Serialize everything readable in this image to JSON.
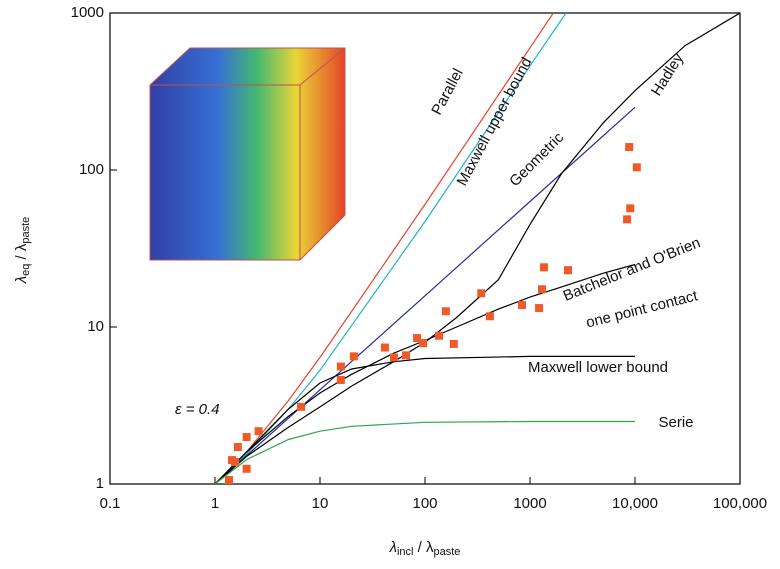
{
  "chart_data": {
    "type": "line",
    "x_label": [
      "λ",
      "incl",
      " / λ",
      "paste"
    ],
    "y_label": [
      "λ",
      "eq",
      " / λ",
      "paste"
    ],
    "xscale": "log",
    "yscale": "log",
    "xlim": [
      0.1,
      100000
    ],
    "ylim": [
      1,
      1000
    ],
    "xticks": [
      0.1,
      1,
      10,
      100,
      1000,
      {
        "value": 10000,
        "label": "10,000"
      },
      {
        "value": 100000,
        "label": "100,000"
      }
    ],
    "yticks": [
      1,
      10,
      100,
      1000
    ],
    "annotation": "ε = 0.4",
    "series": [
      {
        "name": "Parallel",
        "color": "#e8442a",
        "x": [
          1,
          2,
          5,
          10,
          100,
          1000,
          1667
        ],
        "values": [
          1,
          1.6,
          3.4,
          6.4,
          60.4,
          600.4,
          1000
        ]
      },
      {
        "name": "Maxwell upper bound",
        "color": "#1fb5c0",
        "x": [
          1,
          2,
          5,
          10,
          100,
          1000,
          2200
        ],
        "values": [
          1,
          1.55,
          3.0,
          5.3,
          47,
          460,
          1000
        ]
      },
      {
        "name": "Geometric",
        "color": "#2a2a9a",
        "x": [
          1,
          10,
          100,
          1000,
          10000
        ],
        "values": [
          1,
          3.98,
          15.8,
          63,
          251
        ]
      },
      {
        "name": "Hadley",
        "color": "#000000",
        "x": [
          1,
          2,
          5,
          10,
          20,
          50,
          100,
          200,
          500,
          1000,
          2000,
          5000,
          10000,
          30000,
          100000
        ],
        "values": [
          1,
          1.5,
          2.3,
          3.1,
          4.2,
          6,
          8,
          11.5,
          20,
          45,
          95,
          200,
          320,
          620,
          1000
        ]
      },
      {
        "name": "Batchelor and O'Brien",
        "note": "one point contact",
        "color": "#000000",
        "x": [
          1,
          2,
          5,
          10,
          20,
          50,
          100,
          200,
          500,
          1000,
          2000,
          5000,
          10000
        ],
        "values": [
          1,
          1.6,
          2.7,
          3.8,
          5,
          6.8,
          8.2,
          10,
          13,
          15.5,
          18,
          22,
          25
        ]
      },
      {
        "name": "Maxwell lower bound",
        "color": "#000000",
        "x": [
          1,
          2,
          5,
          10,
          20,
          50,
          100,
          1000,
          10000
        ],
        "values": [
          1,
          1.6,
          3,
          4.4,
          5.4,
          6,
          6.3,
          6.5,
          6.5
        ]
      },
      {
        "name": "Serie",
        "color": "#2aa84a",
        "x": [
          1,
          2,
          5,
          10,
          20,
          100,
          1000,
          10000
        ],
        "values": [
          1,
          1.43,
          1.92,
          2.17,
          2.33,
          2.47,
          2.5,
          2.5
        ]
      }
    ],
    "points": {
      "color": "#f05a28",
      "x": [
        1.36,
        1.45,
        1.55,
        1.65,
        2.0,
        2.0,
        2.6,
        6.6,
        15.8,
        15.8,
        21,
        41.5,
        50.6,
        66,
        84,
        96,
        136,
        158,
        188,
        343,
        415,
        840,
        1220,
        1300,
        1360,
        2300,
        8400,
        9000,
        8800,
        10400
      ],
      "values": [
        1.06,
        1.42,
        1.38,
        1.72,
        1.99,
        1.25,
        2.17,
        3.1,
        4.6,
        5.6,
        6.5,
        7.4,
        6.4,
        6.6,
        8.5,
        7.9,
        8.8,
        12.6,
        7.8,
        16.4,
        11.7,
        13.8,
        13.2,
        17.4,
        24,
        23,
        48.5,
        57,
        140,
        104
      ]
    }
  }
}
